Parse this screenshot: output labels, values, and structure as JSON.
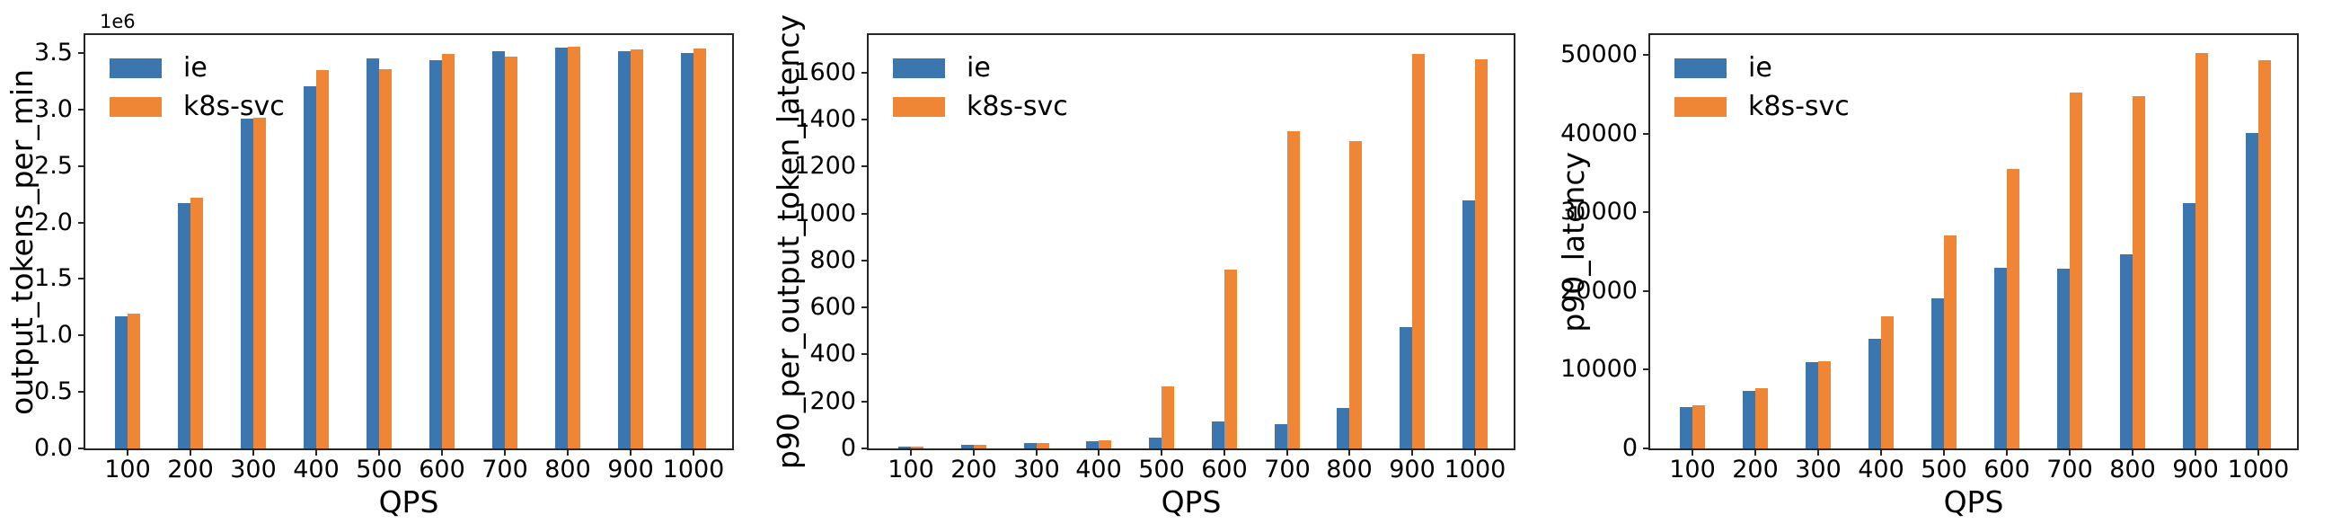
{
  "figure": {
    "background": "#ffffff"
  },
  "colors": {
    "ie": "#3c76af",
    "k8s-svc": "#ef8636",
    "spine": "#262626",
    "text": "#000000"
  },
  "chart_data": [
    {
      "type": "bar",
      "title": "",
      "xlabel": "QPS",
      "ylabel": "output_tokens_per_min",
      "offset_text": "1e6",
      "legend_position": "upper left",
      "grid": false,
      "categories": [
        "100",
        "200",
        "300",
        "400",
        "500",
        "600",
        "700",
        "800",
        "900",
        "1000"
      ],
      "series": [
        {
          "name": "ie",
          "color": "#3c76af",
          "values": [
            1170000,
            2170000,
            2920000,
            3210000,
            3450000,
            3440000,
            3520000,
            3550000,
            3520000,
            3500000
          ]
        },
        {
          "name": "k8s-svc",
          "color": "#ef8636",
          "values": [
            1190000,
            2220000,
            2930000,
            3350000,
            3360000,
            3490000,
            3470000,
            3560000,
            3530000,
            3540000
          ]
        }
      ],
      "ylim": [
        0,
        3660000
      ],
      "yticks": [
        {
          "v": 0,
          "label": "0.0"
        },
        {
          "v": 500000,
          "label": "0.5"
        },
        {
          "v": 1000000,
          "label": "1.0"
        },
        {
          "v": 1500000,
          "label": "1.5"
        },
        {
          "v": 2000000,
          "label": "2.0"
        },
        {
          "v": 2500000,
          "label": "2.5"
        },
        {
          "v": 3000000,
          "label": "3.0"
        },
        {
          "v": 3500000,
          "label": "3.5"
        }
      ]
    },
    {
      "type": "bar",
      "title": "",
      "xlabel": "QPS",
      "ylabel": "p90_per_output_token_latency",
      "offset_text": "",
      "legend_position": "upper left",
      "grid": false,
      "categories": [
        "100",
        "200",
        "300",
        "400",
        "500",
        "600",
        "700",
        "800",
        "900",
        "1000"
      ],
      "series": [
        {
          "name": "ie",
          "color": "#3c76af",
          "values": [
            8,
            15,
            22,
            30,
            45,
            115,
            105,
            172,
            515,
            1057
          ]
        },
        {
          "name": "k8s-svc",
          "color": "#ef8636",
          "values": [
            9,
            16,
            23,
            36,
            265,
            760,
            1350,
            1308,
            1680,
            1655
          ]
        }
      ],
      "ylim": [
        0,
        1760
      ],
      "yticks": [
        {
          "v": 0,
          "label": "0"
        },
        {
          "v": 200,
          "label": "200"
        },
        {
          "v": 400,
          "label": "400"
        },
        {
          "v": 600,
          "label": "600"
        },
        {
          "v": 800,
          "label": "800"
        },
        {
          "v": 1000,
          "label": "1000"
        },
        {
          "v": 1200,
          "label": "1200"
        },
        {
          "v": 1400,
          "label": "1400"
        },
        {
          "v": 1600,
          "label": "1600"
        }
      ]
    },
    {
      "type": "bar",
      "title": "",
      "xlabel": "QPS",
      "ylabel": "p90_latency",
      "offset_text": "",
      "legend_position": "upper left",
      "grid": false,
      "categories": [
        "100",
        "200",
        "300",
        "400",
        "500",
        "600",
        "700",
        "800",
        "900",
        "1000"
      ],
      "series": [
        {
          "name": "ie",
          "color": "#3c76af",
          "values": [
            5300,
            7300,
            10900,
            13900,
            19100,
            22900,
            22800,
            24600,
            31200,
            40100
          ]
        },
        {
          "name": "k8s-svc",
          "color": "#ef8636",
          "values": [
            5500,
            7600,
            11100,
            16800,
            27100,
            35500,
            45200,
            44700,
            50200,
            49300
          ]
        }
      ],
      "ylim": [
        0,
        52500
      ],
      "yticks": [
        {
          "v": 0,
          "label": "0"
        },
        {
          "v": 10000,
          "label": "10000"
        },
        {
          "v": 20000,
          "label": "20000"
        },
        {
          "v": 30000,
          "label": "30000"
        },
        {
          "v": 40000,
          "label": "40000"
        },
        {
          "v": 50000,
          "label": "50000"
        }
      ]
    }
  ]
}
